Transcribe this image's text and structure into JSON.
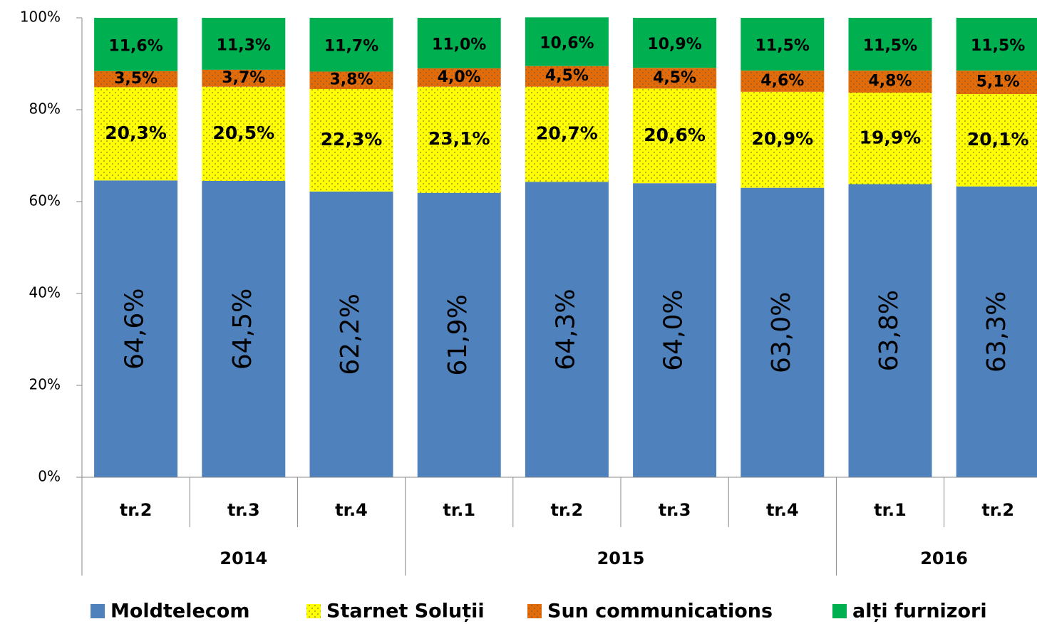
{
  "chart_data": {
    "type": "stacked_bar",
    "categories": [
      "tr.2",
      "tr.3",
      "tr.4",
      "tr.1",
      "tr.2",
      "tr.3",
      "tr.4",
      "tr.1",
      "tr.2"
    ],
    "category_years": [
      "2014",
      "2014",
      "2014",
      "2015",
      "2015",
      "2015",
      "2015",
      "2016",
      "2016"
    ],
    "series": [
      {
        "name": "Moldtelecom",
        "color": "#4f81bd",
        "pattern": "solid",
        "values": [
          64.6,
          64.5,
          62.2,
          61.9,
          64.3,
          64.0,
          63.0,
          63.8,
          63.3
        ],
        "value_labels": [
          "64,6%",
          "64,5%",
          "62,2%",
          "61,9%",
          "64,3%",
          "64,0%",
          "63,0%",
          "63,8%",
          "63,3%"
        ]
      },
      {
        "name": "Starnet Soluții",
        "color": "#ffff00",
        "pattern": "dotted",
        "values": [
          20.3,
          20.5,
          22.3,
          23.1,
          20.7,
          20.6,
          20.9,
          19.9,
          20.1
        ],
        "value_labels": [
          "20,3%",
          "20,5%",
          "22,3%",
          "23,1%",
          "20,7%",
          "20,6%",
          "20,9%",
          "19,9%",
          "20,1%"
        ]
      },
      {
        "name": "Sun communications",
        "color": "#e36c09",
        "pattern": "dotted",
        "values": [
          3.5,
          3.7,
          3.8,
          4.0,
          4.5,
          4.5,
          4.6,
          4.8,
          5.1
        ],
        "value_labels": [
          "3,5%",
          "3,7%",
          "3,8%",
          "4,0%",
          "4,5%",
          "4,5%",
          "4,6%",
          "4,8%",
          "5,1%"
        ]
      },
      {
        "name": "alți furnizori",
        "color": "#00b050",
        "pattern": "solid",
        "values": [
          11.6,
          11.3,
          11.7,
          11.0,
          10.6,
          10.9,
          11.5,
          11.5,
          11.5
        ],
        "value_labels": [
          "11,6%",
          "11,3%",
          "11,7%",
          "11,0%",
          "10,6%",
          "10,9%",
          "11,5%",
          "11,5%",
          "11,5%"
        ]
      }
    ],
    "ylim": [
      0,
      100
    ],
    "yticks": [
      {
        "value": 0,
        "label": "0%"
      },
      {
        "value": 20,
        "label": "20%"
      },
      {
        "value": 40,
        "label": "40%"
      },
      {
        "value": 60,
        "label": "60%"
      },
      {
        "value": 80,
        "label": "80%"
      },
      {
        "value": 100,
        "label": "100%"
      }
    ],
    "legend": "bottom"
  }
}
